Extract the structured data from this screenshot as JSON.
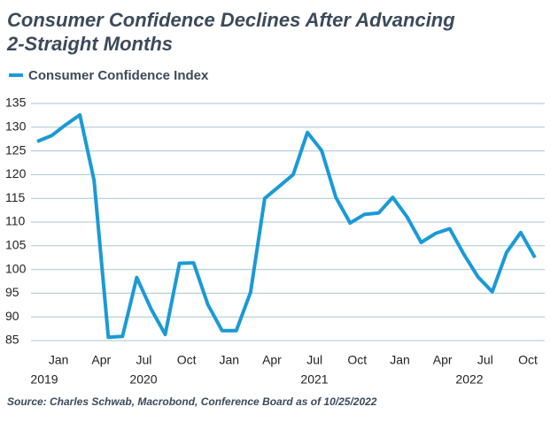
{
  "chart_data": {
    "type": "line",
    "title": "Consumer Confidence Declines After Advancing 2-Straight Months",
    "source": "Source: Charles Schwab, Macrobond, Conference Board as of 10/25/2022",
    "categories": [
      null,
      null,
      "Jan",
      null,
      null,
      "Apr",
      null,
      null,
      "Jul",
      null,
      null,
      "Oct",
      null,
      null,
      "Jan",
      null,
      null,
      "Apr",
      null,
      null,
      "Jul",
      null,
      null,
      "Oct",
      null,
      null,
      "Jan",
      null,
      null,
      "Apr",
      null,
      null,
      "Jul",
      null,
      null,
      "Oct"
    ],
    "year_labels": [
      "2019",
      "2020",
      "2021",
      "2022"
    ],
    "series": [
      {
        "name": "Consumer Confidence Index",
        "color": "#1a9ad6",
        "values": [
          127.0,
          128.2,
          130.5,
          132.6,
          118.8,
          85.7,
          85.9,
          98.3,
          91.7,
          86.3,
          101.3,
          101.4,
          92.6,
          87.1,
          87.1,
          95.2,
          115.0,
          117.5,
          120.0,
          128.9,
          125.1,
          115.2,
          109.8,
          111.6,
          111.9,
          115.2,
          111.1,
          105.7,
          107.6,
          108.6,
          103.2,
          98.4,
          95.3,
          103.6,
          107.8,
          102.5
        ]
      }
    ],
    "ylim": [
      85,
      135
    ],
    "yticks": [
      85,
      90,
      95,
      100,
      105,
      110,
      115,
      120,
      125,
      130,
      135
    ],
    "grid": true,
    "legend": "top-left"
  }
}
